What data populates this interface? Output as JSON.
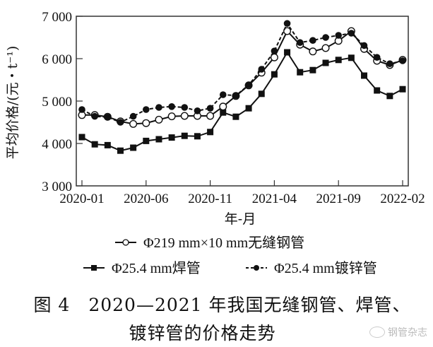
{
  "chart_data": {
    "type": "line",
    "title": "",
    "xlabel": "年-月",
    "ylabel": "平均价格/(元・t⁻¹)",
    "ylim": [
      3000,
      7000
    ],
    "yticks": [
      3000,
      4000,
      5000,
      6000,
      7000
    ],
    "ytick_labels": [
      "3 000",
      "4 000",
      "5 000",
      "6 000",
      "7 000"
    ],
    "xtick_labels": [
      "2020-01",
      "2020-06",
      "2020-11",
      "2021-04",
      "2021-09",
      "2022-02"
    ],
    "xtick_indices": [
      0,
      5,
      10,
      15,
      20,
      25
    ],
    "x": [
      "2020-01",
      "2020-02",
      "2020-03",
      "2020-04",
      "2020-05",
      "2020-06",
      "2020-07",
      "2020-08",
      "2020-09",
      "2020-10",
      "2020-11",
      "2020-12",
      "2021-01",
      "2021-02",
      "2021-03",
      "2021-04",
      "2021-05",
      "2021-06",
      "2021-07",
      "2021-08",
      "2021-09",
      "2021-10",
      "2021-11",
      "2021-12",
      "2022-01",
      "2022-02"
    ],
    "grid": false,
    "legend_position": "bottom",
    "series": [
      {
        "name": "Φ219 mm×10 mm无缝钢管",
        "marker": "open-circle",
        "line": "solid",
        "values": [
          4670,
          4670,
          4630,
          4520,
          4460,
          4480,
          4560,
          4640,
          4650,
          4650,
          4650,
          4870,
          5120,
          5370,
          5670,
          6030,
          6650,
          6330,
          6170,
          6250,
          6420,
          6650,
          6230,
          5950,
          5850,
          5970
        ]
      },
      {
        "name": "Φ25.4 mm焊管",
        "marker": "filled-square",
        "line": "solid",
        "values": [
          4150,
          3980,
          3960,
          3830,
          3900,
          4060,
          4100,
          4140,
          4180,
          4170,
          4270,
          4730,
          4630,
          4830,
          5170,
          5630,
          6150,
          5680,
          5730,
          5900,
          5970,
          6020,
          5600,
          5250,
          5120,
          5280
        ]
      },
      {
        "name": "Φ25.4 mm镀锌管",
        "marker": "filled-circle",
        "line": "dashed",
        "values": [
          4800,
          4640,
          4620,
          4500,
          4640,
          4800,
          4850,
          4870,
          4850,
          4770,
          4830,
          5150,
          5130,
          5380,
          5750,
          6180,
          6830,
          6380,
          6430,
          6500,
          6550,
          6600,
          6310,
          6030,
          5880,
          5950
        ]
      }
    ]
  },
  "caption": {
    "line1": "图 4　2020—2021 年我国无缝钢管、焊管、",
    "line2": "镀锌管的价格走势"
  },
  "watermark": "钢管杂志",
  "colors": {
    "line": "#111111",
    "background": "#ffffff",
    "watermark": "#bbbbbb"
  }
}
